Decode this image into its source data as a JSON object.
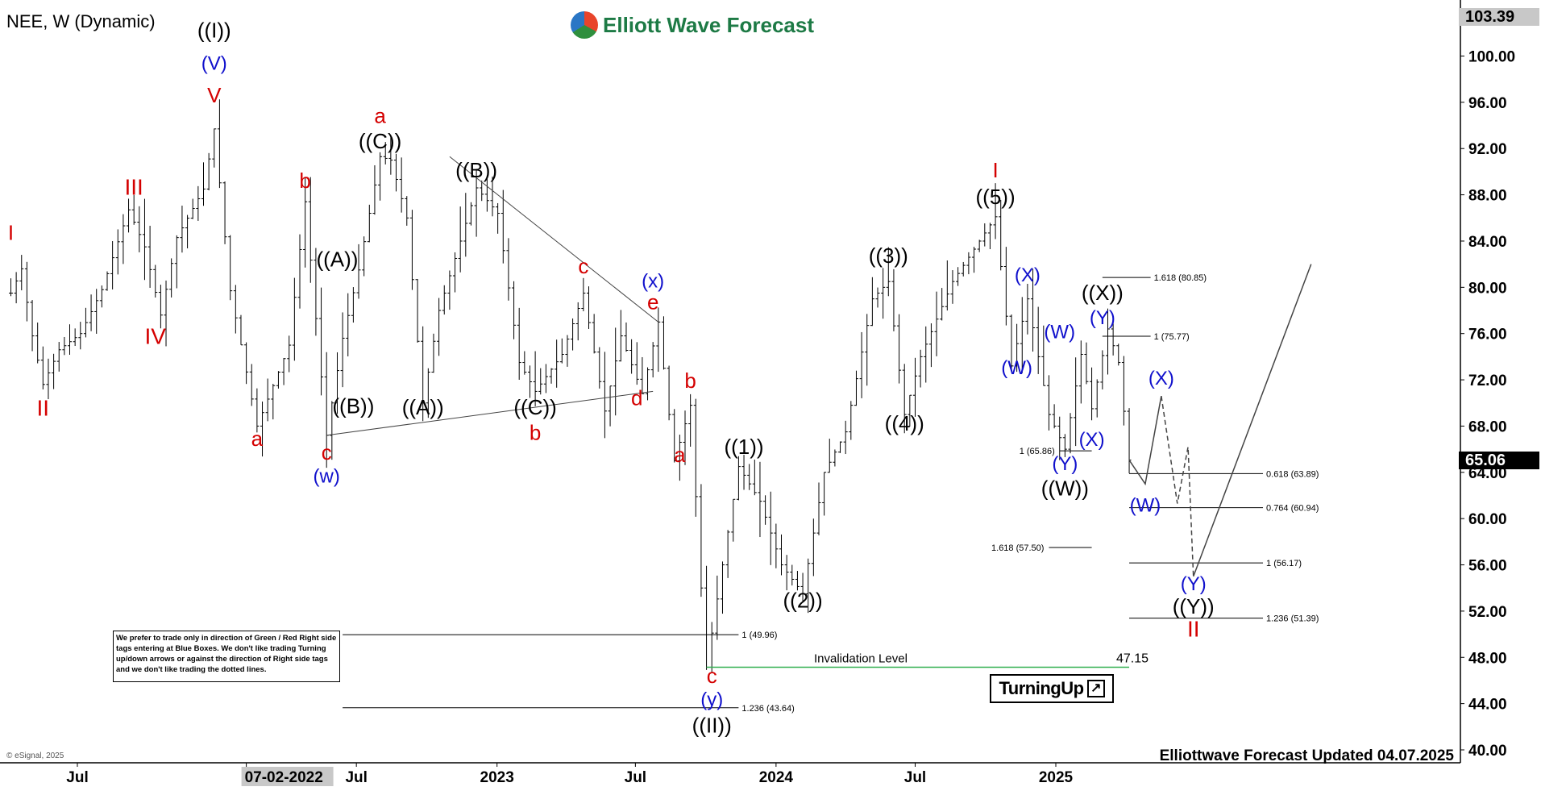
{
  "header": {
    "symbol_label": "NEE, W (Dynamic)"
  },
  "logo": {
    "name": "Elliott Wave Forecast"
  },
  "footer": {
    "updated": "Elliottwave Forecast Updated 04.07.2025",
    "copyright": "© eSignal, 2025"
  },
  "price_tags": {
    "top": "103.39",
    "last": "65.06"
  },
  "disclaimer": "We prefer to trade only in direction of Green / Red Right side tags entering at Blue Boxes. We don't like trading Turning up/down arrows or against the direction of Right side tags and we don't like trading the dotted lines.",
  "turning_badge": {
    "label": "TurningUp",
    "icon": "arrow-up-right-icon"
  },
  "invalidation": {
    "label": "Invalidation Level",
    "value": "47.15"
  },
  "colors": {
    "red": "#d40000",
    "blue": "#1010cc",
    "black": "#000000",
    "green": "#33b050"
  },
  "chart_data": {
    "type": "ohlc",
    "timeframe": "weekly",
    "y_axis": {
      "side": "right",
      "ylim": [
        38.8,
        103.39
      ],
      "ticks": [
        "100.00",
        "96.00",
        "92.00",
        "88.00",
        "84.00",
        "80.00",
        "76.00",
        "72.00",
        "68.00",
        "64.00",
        "60.00",
        "56.00",
        "52.00",
        "48.00",
        "44.00",
        "40.00"
      ]
    },
    "x_axis": {
      "ticks": [
        {
          "label": "Jul",
          "date": "2021-07-01"
        },
        {
          "label": "07-02-2022",
          "date": "2022-02-07",
          "highlighted": true
        },
        {
          "label": "Jul",
          "date": "2022-07-01"
        },
        {
          "label": "2023",
          "date": "2023-01-01"
        },
        {
          "label": "Jul",
          "date": "2023-07-01"
        },
        {
          "label": "2024",
          "date": "2024-01-01"
        },
        {
          "label": "Jul",
          "date": "2024-07-01"
        },
        {
          "label": "2025",
          "date": "2025-01-01"
        }
      ]
    },
    "price_path": [
      [
        "2021-04-05",
        79.5
      ],
      [
        "2021-04-19",
        81.6
      ],
      [
        "2021-05-03",
        75.8
      ],
      [
        "2021-05-17",
        71.6
      ],
      [
        "2021-06-07",
        74.6
      ],
      [
        "2021-07-05",
        76.0
      ],
      [
        "2021-08-02",
        79.8
      ],
      [
        "2021-09-06",
        86.7
      ],
      [
        "2021-09-27",
        83.5
      ],
      [
        "2021-10-18",
        77.6
      ],
      [
        "2021-11-08",
        84.3
      ],
      [
        "2021-12-13",
        88.5
      ],
      [
        "2021-12-27",
        93.7
      ],
      [
        "2022-01-17",
        79.7
      ],
      [
        "2022-02-21",
        68.0
      ],
      [
        "2022-04-04",
        75.0
      ],
      [
        "2022-04-25",
        87.4
      ],
      [
        "2022-05-23",
        67.2
      ],
      [
        "2022-06-13",
        75.6
      ],
      [
        "2022-07-04",
        81.5
      ],
      [
        "2022-08-01",
        91.3
      ],
      [
        "2022-08-15",
        91.0
      ],
      [
        "2022-09-05",
        86.0
      ],
      [
        "2022-09-26",
        70.0
      ],
      [
        "2022-10-17",
        78.0
      ],
      [
        "2022-11-14",
        84.0
      ],
      [
        "2022-12-05",
        88.6
      ],
      [
        "2023-01-02",
        86.4
      ],
      [
        "2023-01-30",
        73.5
      ],
      [
        "2023-02-20",
        71.0
      ],
      [
        "2023-03-27",
        74.2
      ],
      [
        "2023-04-24",
        79.5
      ],
      [
        "2023-05-22",
        69.3
      ],
      [
        "2023-06-12",
        75.8
      ],
      [
        "2023-07-10",
        70.8
      ],
      [
        "2023-07-31",
        77.0
      ],
      [
        "2023-08-21",
        65.0
      ],
      [
        "2023-09-11",
        69.8
      ],
      [
        "2023-09-25",
        54.0
      ],
      [
        "2023-10-02",
        47.15
      ],
      [
        "2023-10-23",
        56.0
      ],
      [
        "2023-11-13",
        64.5
      ],
      [
        "2023-12-11",
        61.5
      ],
      [
        "2024-01-08",
        56.0
      ],
      [
        "2024-02-05",
        53.5
      ],
      [
        "2024-03-04",
        64.0
      ],
      [
        "2024-04-01",
        67.5
      ],
      [
        "2024-05-06",
        79.0
      ],
      [
        "2024-05-27",
        80.5
      ],
      [
        "2024-06-17",
        69.0
      ],
      [
        "2024-07-08",
        74.0
      ],
      [
        "2024-08-19",
        80.5
      ],
      [
        "2024-10-14",
        86.1
      ],
      [
        "2024-11-04",
        73.2
      ],
      [
        "2024-11-25",
        79.0
      ],
      [
        "2024-12-23",
        69.0
      ],
      [
        "2025-01-13",
        66.0
      ],
      [
        "2025-02-03",
        74.2
      ],
      [
        "2025-02-17",
        69.5
      ],
      [
        "2025-03-10",
        76.4
      ],
      [
        "2025-03-24",
        73.5
      ],
      [
        "2025-04-07",
        65.06
      ]
    ],
    "wave_labels": [
      {
        "text": "I",
        "color": "red",
        "date": "2021-04-05",
        "price": 84.1
      },
      {
        "text": "II",
        "color": "red",
        "date": "2021-05-17",
        "price": 68.9
      },
      {
        "text": "III",
        "color": "red",
        "date": "2021-09-13",
        "price": 88.0
      },
      {
        "text": "IV",
        "color": "red",
        "date": "2021-10-11",
        "price": 75.1
      },
      {
        "text": "((I))",
        "color": "black",
        "date": "2021-12-27",
        "price": 101.6
      },
      {
        "text": "(V)",
        "color": "blue",
        "date": "2021-12-27",
        "price": 98.8
      },
      {
        "text": "V",
        "color": "red",
        "date": "2021-12-27",
        "price": 96.0
      },
      {
        "text": "a",
        "color": "red",
        "date": "2022-02-21",
        "price": 66.3
      },
      {
        "text": "b",
        "color": "red",
        "date": "2022-04-25",
        "price": 88.6
      },
      {
        "text": "c",
        "color": "red",
        "date": "2022-05-23",
        "price": 65.1
      },
      {
        "text": "(w)",
        "color": "blue",
        "date": "2022-05-23",
        "price": 63.1
      },
      {
        "text": "((A))",
        "color": "black",
        "date": "2022-06-06",
        "price": 81.8
      },
      {
        "text": "((B))",
        "color": "black",
        "date": "2022-06-27",
        "price": 69.1
      },
      {
        "text": "a",
        "color": "red",
        "date": "2022-08-01",
        "price": 94.2
      },
      {
        "text": "((C))",
        "color": "black",
        "date": "2022-08-01",
        "price": 92.0
      },
      {
        "text": "((A))",
        "color": "black",
        "date": "2022-09-26",
        "price": 69.0
      },
      {
        "text": "((B))",
        "color": "black",
        "date": "2022-12-05",
        "price": 89.5
      },
      {
        "text": "((C))",
        "color": "black",
        "date": "2023-02-20",
        "price": 69.0
      },
      {
        "text": "b",
        "color": "red",
        "date": "2023-02-20",
        "price": 66.8
      },
      {
        "text": "c",
        "color": "red",
        "date": "2023-04-24",
        "price": 81.2
      },
      {
        "text": "d",
        "color": "red",
        "date": "2023-07-03",
        "price": 69.8
      },
      {
        "text": "(x)",
        "color": "blue",
        "date": "2023-07-24",
        "price": 80.0
      },
      {
        "text": "e",
        "color": "red",
        "date": "2023-07-24",
        "price": 78.1
      },
      {
        "text": "b",
        "color": "red",
        "date": "2023-09-11",
        "price": 71.3
      },
      {
        "text": "a",
        "color": "red",
        "date": "2023-08-28",
        "price": 64.9
      },
      {
        "text": "c",
        "color": "red",
        "date": "2023-10-09",
        "price": 45.8
      },
      {
        "text": "(y)",
        "color": "blue",
        "date": "2023-10-09",
        "price": 43.8
      },
      {
        "text": "((II))",
        "color": "black",
        "date": "2023-10-09",
        "price": 41.5
      },
      {
        "text": "((1))",
        "color": "black",
        "date": "2023-11-20",
        "price": 65.6
      },
      {
        "text": "((2))",
        "color": "black",
        "date": "2024-02-05",
        "price": 52.3
      },
      {
        "text": "((3))",
        "color": "black",
        "date": "2024-05-27",
        "price": 82.1
      },
      {
        "text": "((4))",
        "color": "black",
        "date": "2024-06-17",
        "price": 67.6
      },
      {
        "text": "I",
        "color": "red",
        "date": "2024-10-14",
        "price": 89.5
      },
      {
        "text": "((5))",
        "color": "black",
        "date": "2024-10-14",
        "price": 87.2
      },
      {
        "text": "(X)",
        "color": "blue",
        "date": "2024-11-25",
        "price": 80.5
      },
      {
        "text": "(W)",
        "color": "blue",
        "date": "2024-11-11",
        "price": 72.5
      },
      {
        "text": "(W)",
        "color": "blue",
        "date": "2025-01-06",
        "price": 75.6
      },
      {
        "text": "(X)",
        "color": "blue",
        "date": "2025-02-17",
        "price": 66.3
      },
      {
        "text": "(Y)",
        "color": "blue",
        "date": "2025-01-13",
        "price": 64.2
      },
      {
        "text": "((W))",
        "color": "black",
        "date": "2025-01-13",
        "price": 62.0
      },
      {
        "text": "((X))",
        "color": "black",
        "date": "2025-03-03",
        "price": 78.9
      },
      {
        "text": "(Y)",
        "color": "blue",
        "date": "2025-03-03",
        "price": 76.8
      },
      {
        "text": "(X)",
        "color": "blue",
        "date": "2025-05-19",
        "price": 71.6
      },
      {
        "text": "(W)",
        "color": "blue",
        "date": "2025-04-28",
        "price": 60.6
      },
      {
        "text": "(Y)",
        "color": "blue",
        "date": "2025-06-30",
        "price": 53.8
      },
      {
        "text": "((Y))",
        "color": "black",
        "date": "2025-06-30",
        "price": 51.8
      },
      {
        "text": "II",
        "color": "red",
        "date": "2025-06-30",
        "price": 49.8
      }
    ],
    "fib_levels": [
      {
        "label": "1.618 (80.85)",
        "price": 80.85,
        "from": "2025-03-03",
        "to": "2025-05-05"
      },
      {
        "label": "1 (75.77)",
        "price": 75.77,
        "from": "2025-03-03",
        "to": "2025-05-05"
      },
      {
        "label": "1 (65.86)",
        "price": 65.86,
        "from": "2025-01-06",
        "to": "2025-02-17"
      },
      {
        "label": "0.618 (63.89)",
        "price": 63.89,
        "from": "2025-04-07",
        "to": "2025-09-29"
      },
      {
        "label": "0.764 (60.94)",
        "price": 60.94,
        "from": "2025-04-07",
        "to": "2025-09-29"
      },
      {
        "label": "1.618 (57.50)",
        "price": 57.5,
        "from": "2024-12-23",
        "to": "2025-02-17"
      },
      {
        "label": "1 (56.17)",
        "price": 56.17,
        "from": "2025-04-07",
        "to": "2025-09-29"
      },
      {
        "label": "1.236 (51.39)",
        "price": 51.39,
        "from": "2025-04-07",
        "to": "2025-09-29"
      },
      {
        "label": "1 (49.96)",
        "price": 49.96,
        "from": "2022-06-13",
        "to": "2023-11-13"
      },
      {
        "label": "1.236 (43.64)",
        "price": 43.64,
        "from": "2022-06-13",
        "to": "2023-11-13"
      }
    ],
    "projection": {
      "solid": [
        [
          "2025-04-07",
          65.06
        ],
        [
          "2025-04-28",
          63.0
        ],
        [
          "2025-05-19",
          70.6
        ]
      ],
      "dashed": [
        [
          "2025-05-19",
          70.6
        ],
        [
          "2025-06-09",
          61.3
        ],
        [
          "2025-06-23",
          66.2
        ],
        [
          "2025-06-30",
          55.0
        ]
      ],
      "solid_up": [
        [
          "2025-06-30",
          55.0
        ],
        [
          "2025-12-01",
          82.0
        ]
      ]
    },
    "trendlines": [
      [
        [
          "2022-05-23",
          67.2
        ],
        [
          "2023-07-24",
          71.0
        ]
      ],
      [
        [
          "2022-10-31",
          91.3
        ],
        [
          "2023-07-31",
          77.0
        ]
      ]
    ]
  }
}
